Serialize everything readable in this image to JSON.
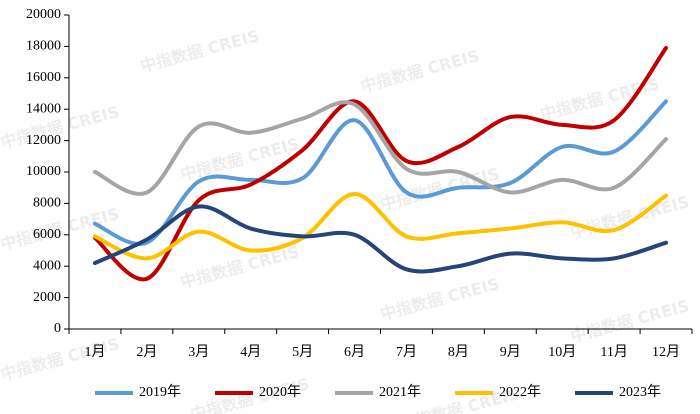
{
  "chart_data": {
    "type": "line",
    "watermark": "中指数据 CREIS",
    "categories": [
      "1月",
      "2月",
      "3月",
      "4月",
      "5月",
      "6月",
      "7月",
      "8月",
      "9月",
      "10月",
      "11月",
      "12月"
    ],
    "series": [
      {
        "name": "2019年",
        "color": "#5b9bd5",
        "values": [
          6700,
          5500,
          9400,
          9500,
          9600,
          13300,
          8700,
          9000,
          9300,
          11600,
          11300,
          14500
        ]
      },
      {
        "name": "2020年",
        "color": "#c00000",
        "values": [
          5800,
          3200,
          8200,
          9200,
          11400,
          14500,
          10700,
          11600,
          13500,
          13000,
          13300,
          17900
        ]
      },
      {
        "name": "2021年",
        "color": "#a5a5a5",
        "values": [
          10000,
          8700,
          12900,
          12500,
          13400,
          14300,
          10200,
          10000,
          8700,
          9500,
          9000,
          12100
        ]
      },
      {
        "name": "2022年",
        "color": "#ffc000",
        "values": [
          5900,
          4500,
          6200,
          5000,
          5800,
          8600,
          5900,
          6100,
          6400,
          6800,
          6300,
          8500
        ]
      },
      {
        "name": "2023年",
        "color": "#264478",
        "values": [
          4200,
          5700,
          7800,
          6400,
          5900,
          6000,
          3800,
          4000,
          4800,
          4500,
          4500,
          5500
        ]
      }
    ],
    "ylim": [
      0,
      20000
    ],
    "yticks": [
      0,
      2000,
      4000,
      6000,
      8000,
      10000,
      12000,
      14000,
      16000,
      18000,
      20000
    ],
    "smooth": true
  }
}
